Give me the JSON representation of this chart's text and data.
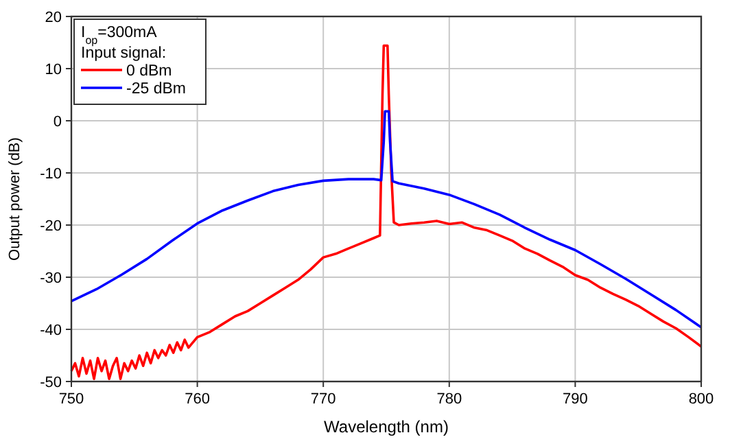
{
  "chart_data": {
    "type": "line",
    "xlabel": "Wavelength (nm)",
    "ylabel": "Output power (dB)",
    "legend_title": "Input signal:",
    "annotations": [
      "I$_{op}$=300mA"
    ],
    "xlim": [
      750,
      800
    ],
    "xticks": [
      750,
      760,
      770,
      780,
      790,
      800
    ],
    "ylim": [
      -50,
      20
    ],
    "yticks": [
      -50,
      -40,
      -30,
      -20,
      -10,
      0,
      10,
      20
    ],
    "grid": true,
    "legend": "top left",
    "line_style": "solid",
    "marker": "none",
    "series": [
      {
        "name": "0 dBm",
        "color": "#ff0000",
        "x": [
          750,
          750.3,
          750.6,
          750.9,
          751.2,
          751.5,
          751.8,
          752.1,
          752.4,
          752.7,
          753,
          753.3,
          753.6,
          753.9,
          754.2,
          754.5,
          754.8,
          755.1,
          755.4,
          755.7,
          756,
          756.3,
          756.6,
          756.9,
          757.2,
          757.5,
          757.8,
          758.1,
          758.4,
          758.7,
          759,
          759.3,
          760,
          761,
          762,
          763,
          764,
          765,
          766,
          767,
          768,
          769,
          770,
          771,
          772,
          773,
          774,
          774.5,
          774.7,
          774.8,
          775.1,
          775.2,
          775.4,
          775.6,
          776,
          777,
          778,
          779,
          780,
          781,
          782,
          783,
          784,
          785,
          786,
          787,
          788,
          789,
          790,
          791,
          792,
          793,
          794,
          795,
          796,
          797,
          798,
          799,
          800
        ],
        "values": [
          -48,
          -46.5,
          -49,
          -45.5,
          -48.5,
          -46,
          -49.5,
          -45.5,
          -48,
          -46,
          -49.5,
          -47,
          -45.5,
          -49.5,
          -46.5,
          -48,
          -46,
          -47.5,
          -45,
          -47,
          -44.5,
          -46.5,
          -44,
          -45.5,
          -44,
          -45,
          -43,
          -44.5,
          -42.5,
          -44,
          -42,
          -43.5,
          -41.5,
          -40.5,
          -39,
          -37.5,
          -36.5,
          -35,
          -33.5,
          -32,
          -30.5,
          -28.5,
          -26.2,
          -25.5,
          -24.5,
          -23.5,
          -22.5,
          -22,
          5,
          14.4,
          14.4,
          5,
          -10,
          -19.5,
          -20,
          -19.7,
          -19.5,
          -19.2,
          -19.8,
          -19.5,
          -20.5,
          -21,
          -22,
          -23,
          -24.5,
          -25.5,
          -26.8,
          -28,
          -29.6,
          -30.5,
          -32,
          -33.2,
          -34.3,
          -35.5,
          -37,
          -38.5,
          -39.8,
          -41.5,
          -43.3
        ]
      },
      {
        "name": "-25 dBm",
        "color": "#0000ff",
        "x": [
          750,
          752,
          754,
          756,
          758,
          760,
          762,
          764,
          766,
          768,
          770,
          772,
          774,
          774.6,
          774.8,
          774.9,
          775.2,
          775.3,
          775.5,
          776,
          778,
          780,
          782,
          784,
          786,
          788,
          790,
          792,
          794,
          796,
          798,
          800
        ],
        "values": [
          -34.6,
          -32.3,
          -29.5,
          -26.5,
          -23,
          -19.7,
          -17.2,
          -15.3,
          -13.5,
          -12.3,
          -11.5,
          -11.2,
          -11.2,
          -11.4,
          -4,
          1.8,
          1.8,
          -4,
          -11.6,
          -12,
          -13,
          -14.2,
          -16,
          -18,
          -20.5,
          -22.8,
          -24.8,
          -27.5,
          -30.3,
          -33.3,
          -36.3,
          -39.6
        ]
      }
    ]
  }
}
